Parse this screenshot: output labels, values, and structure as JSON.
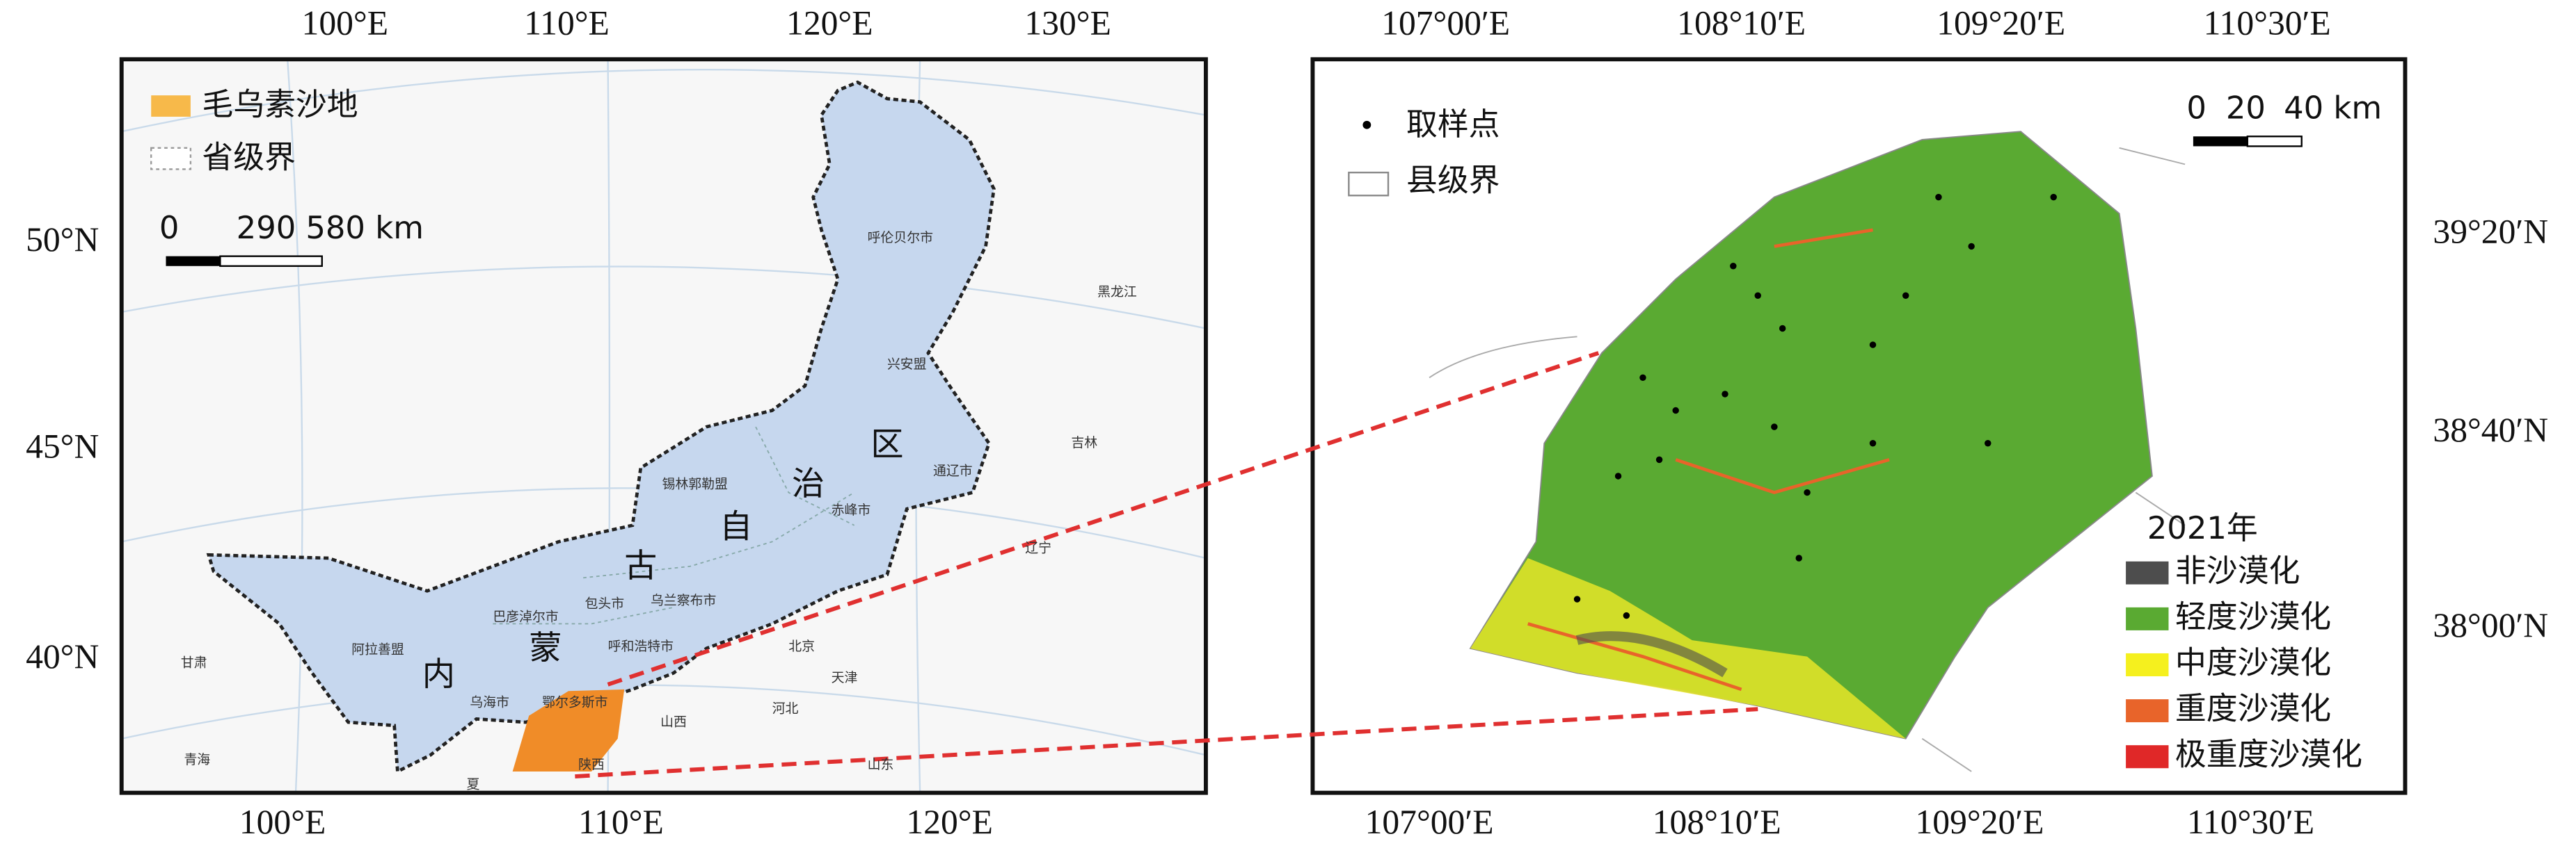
{
  "left_map": {
    "top_axis_labels": [
      "100°E",
      "110°E",
      "120°E",
      "130°E"
    ],
    "bottom_axis_labels": [
      "100°E",
      "110°E",
      "120°E"
    ],
    "left_axis_labels": [
      "50°N",
      "45°N",
      "40°N"
    ],
    "legend": [
      "毛乌素沙地",
      "省级界"
    ],
    "scale_bar": [
      "0",
      "290",
      "580 km"
    ],
    "region_name": [
      "内",
      "蒙",
      "古",
      "自",
      "治",
      "区"
    ],
    "place_labels": [
      "呼伦贝尔市",
      "兴安盟",
      "通辽市",
      "赤峰市",
      "锡林郭勒盟",
      "乌兰察布市",
      "包头市",
      "呼和浩特市",
      "巴彦淖尔市",
      "阿拉善盟",
      "乌海市",
      "鄂尔多斯市",
      "黑龙江",
      "吉林",
      "辽宁",
      "北京",
      "天津",
      "河北",
      "山西",
      "陕西",
      "甘肃",
      "青海",
      "山东",
      "夏"
    ]
  },
  "right_map": {
    "top_axis_labels": [
      "107°00′E",
      "108°10′E",
      "109°20′E",
      "110°30′E"
    ],
    "bottom_axis_labels": [
      "107°00′E",
      "108°10′E",
      "109°20′E",
      "110°30′E"
    ],
    "right_axis_labels": [
      "39°20′N",
      "38°40′N",
      "38°00′N"
    ],
    "legend": [
      "取样点",
      "县级界"
    ],
    "scale_bar": [
      "0",
      "20",
      "40 km"
    ],
    "class_legend": {
      "title": "2021年",
      "classes": [
        {
          "name": "非沙漠化",
          "color": "#4d4d4d"
        },
        {
          "name": "轻度沙漠化",
          "color": "#5aaa32"
        },
        {
          "name": "中度沙漠化",
          "color": "#f5f01e"
        },
        {
          "name": "重度沙漠化",
          "color": "#e8642a"
        },
        {
          "name": "极重度沙漠化",
          "color": "#e02828"
        }
      ]
    }
  }
}
